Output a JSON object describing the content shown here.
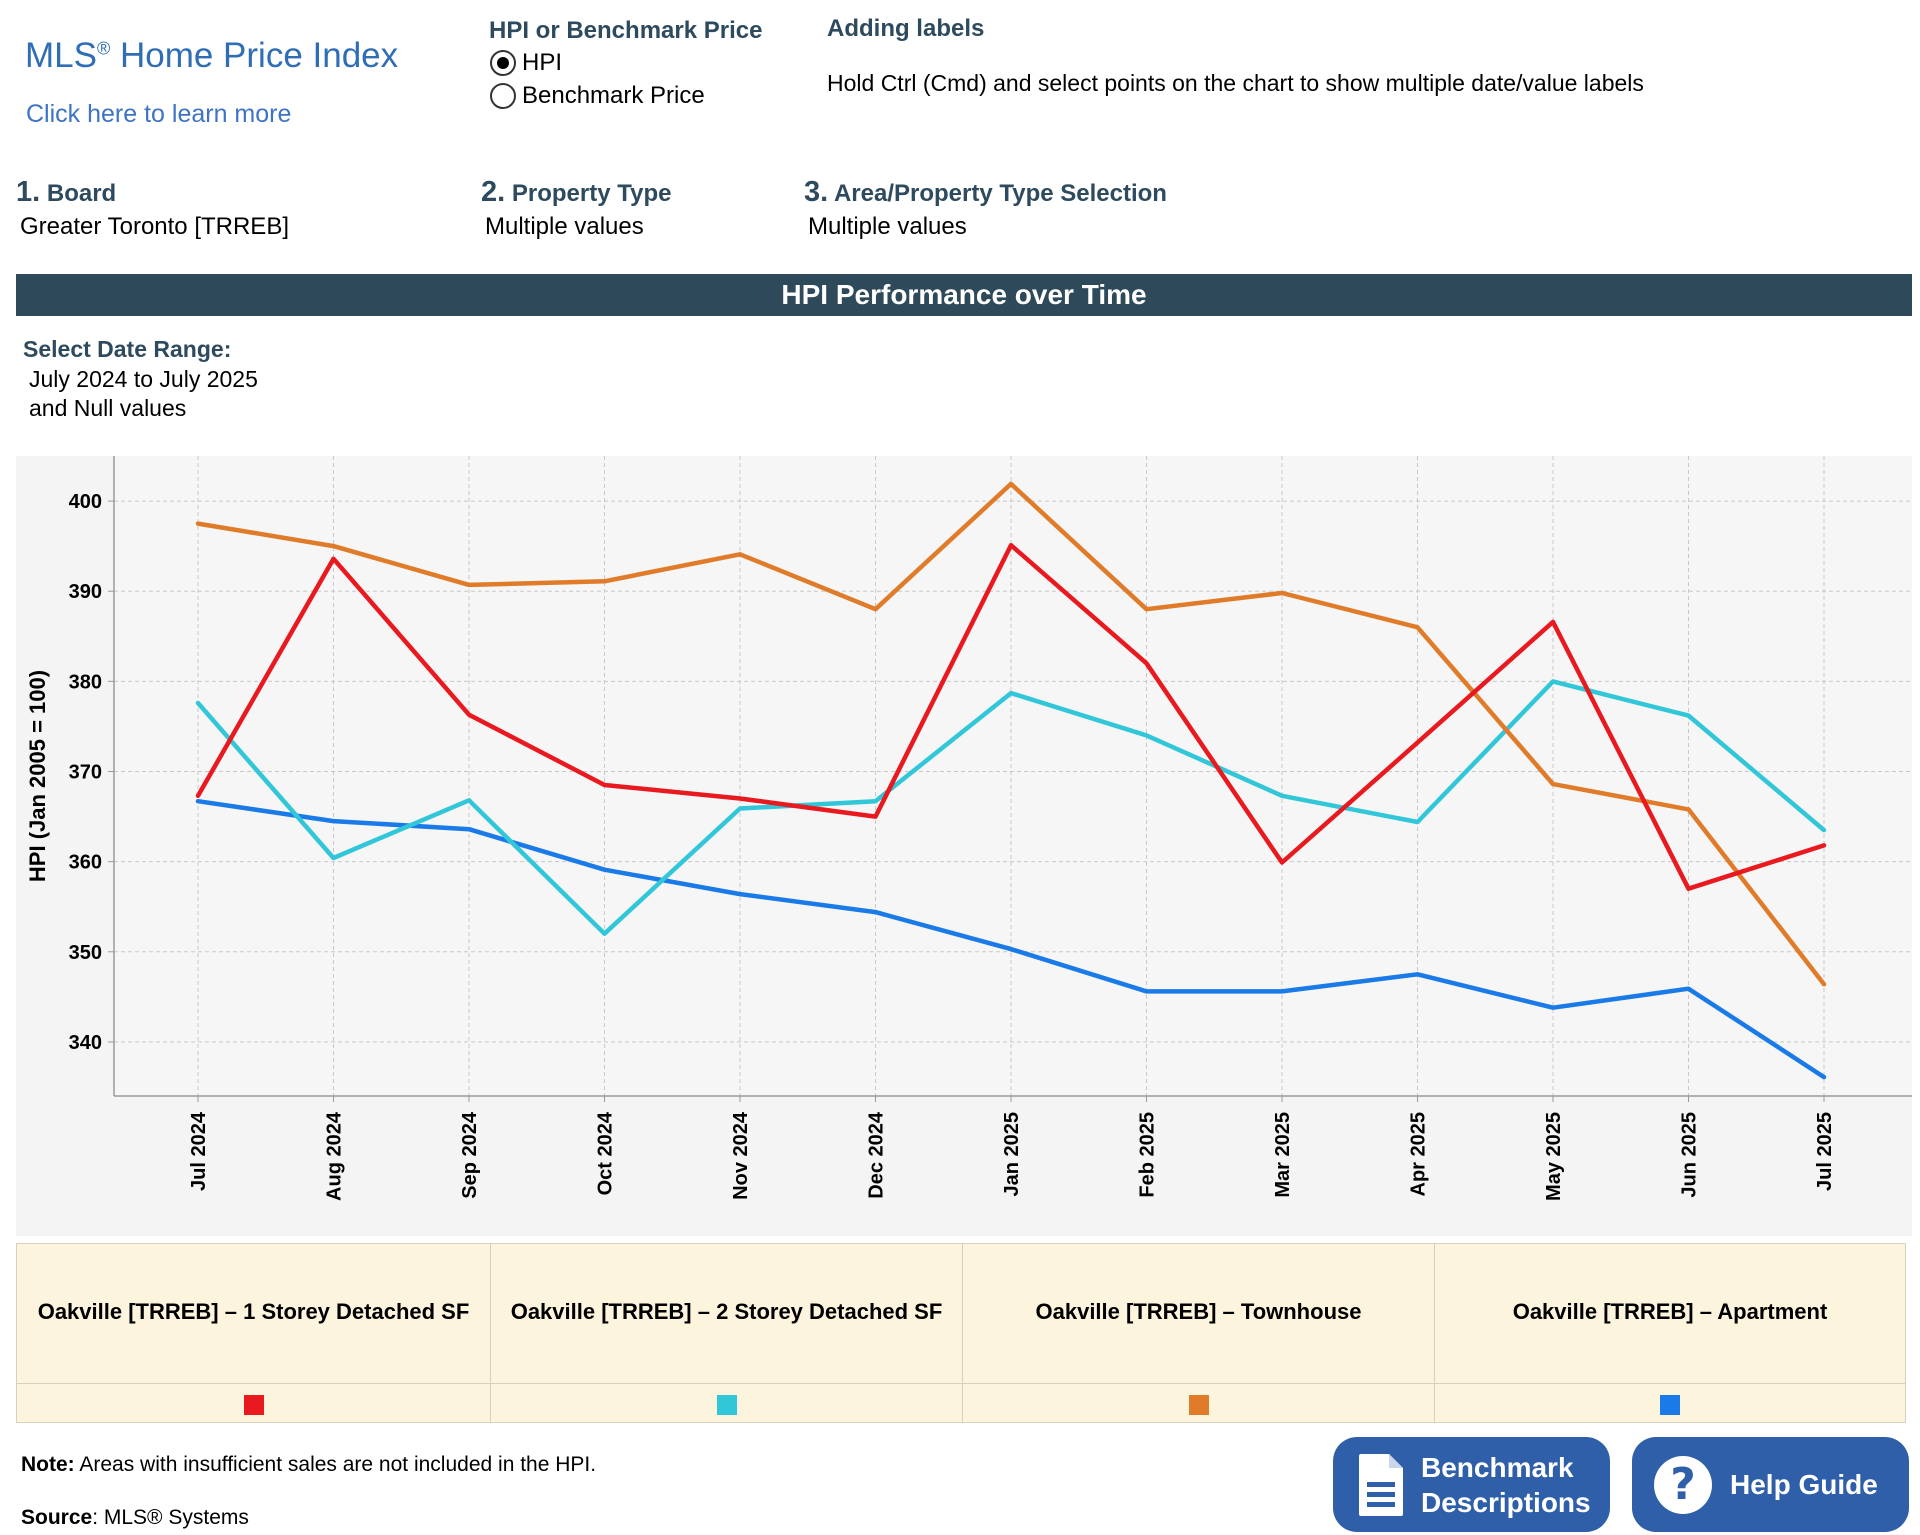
{
  "header": {
    "logo_title": "MLS",
    "logo_reg": "®",
    "logo_title_rest": " Home Price Index",
    "learn_more": "Click here to learn more",
    "toggle_heading": "HPI or Benchmark Price",
    "options": [
      {
        "label": "HPI",
        "selected": true
      },
      {
        "label": "Benchmark Price",
        "selected": false
      }
    ],
    "labels_heading": "Adding labels",
    "labels_text": "Hold Ctrl (Cmd) and select points on the chart to show multiple date/value labels"
  },
  "filters": [
    {
      "num": "1.",
      "label": "Board",
      "value": "Greater Toronto [TRREB]"
    },
    {
      "num": "2.",
      "label": "Property Type",
      "value": "Multiple values"
    },
    {
      "num": "3.",
      "label": "Area/Property Type Selection",
      "value": "Multiple values"
    }
  ],
  "banner": "HPI Performance over Time",
  "date_range": {
    "heading": "Select Date Range:",
    "value_line1": "July 2024 to July 2025",
    "value_line2": "and Null values"
  },
  "chart_data": {
    "type": "line",
    "ylabel": "HPI (Jan 2005 = 100)",
    "ylim": [
      334,
      405
    ],
    "yticks": [
      340,
      350,
      360,
      370,
      380,
      390,
      400
    ],
    "grid": true,
    "categories": [
      "Jul 2024",
      "Aug 2024",
      "Sep 2024",
      "Oct 2024",
      "Nov 2024",
      "Dec 2024",
      "Jan 2025",
      "Feb 2025",
      "Mar 2025",
      "Apr 2025",
      "May 2025",
      "Jun 2025",
      "Jul 2025"
    ],
    "series": [
      {
        "name": "Oakville [TRREB] – 1 Storey Detached SF",
        "color": "#e8191f",
        "values": [
          367.3,
          393.6,
          376.3,
          368.5,
          367.0,
          365.0,
          395.1,
          382.0,
          359.9,
          373.2,
          386.6,
          357.0,
          361.8
        ]
      },
      {
        "name": "Oakville [TRREB] – 2 Storey Detached SF",
        "color": "#32c6d9",
        "values": [
          377.6,
          360.4,
          366.8,
          352.0,
          365.9,
          366.7,
          378.7,
          374.0,
          367.3,
          364.4,
          380.0,
          376.2,
          363.5
        ]
      },
      {
        "name": "Oakville [TRREB] – Townhouse",
        "color": "#e07b2a",
        "values": [
          397.5,
          395.0,
          390.7,
          391.1,
          394.1,
          388.0,
          401.9,
          388.0,
          389.8,
          386.0,
          368.6,
          365.8,
          346.4
        ]
      },
      {
        "name": "Oakville [TRREB] – Apartment",
        "color": "#1a7ae8",
        "values": [
          366.7,
          364.5,
          363.6,
          359.1,
          356.4,
          354.4,
          350.3,
          345.6,
          345.6,
          347.5,
          343.8,
          345.9,
          336.1
        ]
      }
    ]
  },
  "footer": {
    "note_label": "Note:",
    "note_text": " Areas with insufficient sales are not included in the HPI.",
    "source_label": "Source",
    "source_text": ": MLS® Systems",
    "bench_button_line1": "Benchmark",
    "bench_button_line2": "Descriptions",
    "help_button": "Help Guide",
    "help_symbol": "?"
  },
  "colors": {
    "banner_bg": "#2e4a5a",
    "legend_bg": "#fdf4de",
    "button_bg": "#2f5fa8"
  }
}
